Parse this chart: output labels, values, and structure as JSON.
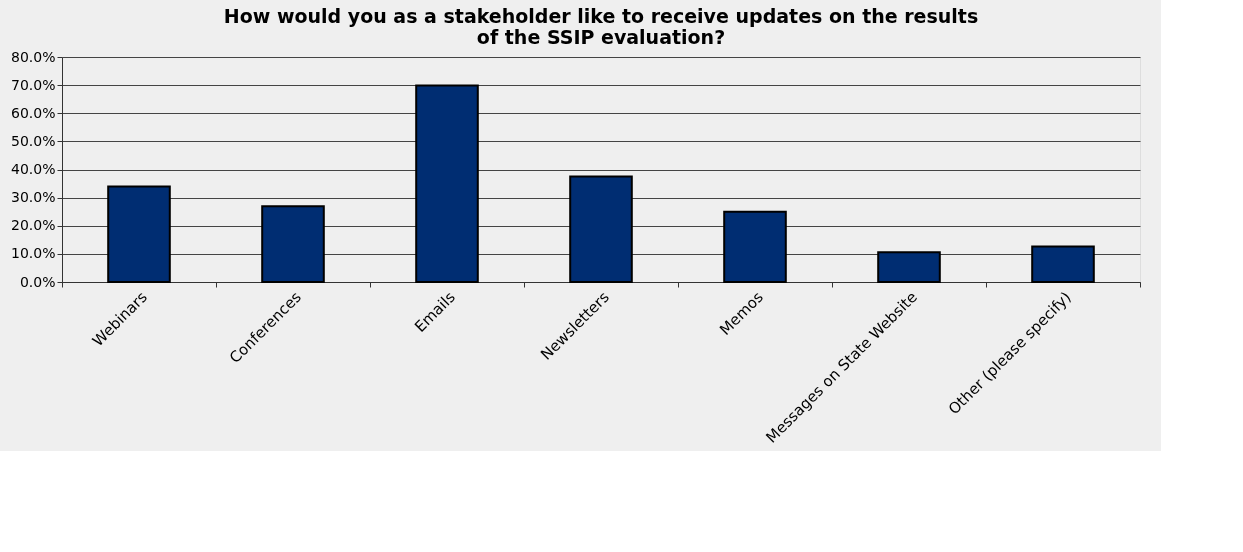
{
  "chart_data": {
    "type": "bar",
    "title": "How would you as a stakeholder like to receive updates on the results of the SSIP evaluation?",
    "categories": [
      "Webinars",
      "Conferences",
      "Emails",
      "Newsletters",
      "Memos",
      "Messages on State Website",
      "Other (please specify)"
    ],
    "values": [
      34.0,
      26.9,
      69.9,
      37.5,
      25.0,
      10.6,
      12.6
    ],
    "color": "#002d72",
    "ylim": [
      0,
      80
    ],
    "yticks": [
      {
        "value": 0,
        "label": "0.0%"
      },
      {
        "value": 10,
        "label": "10.0%"
      },
      {
        "value": 20,
        "label": "20.0%"
      },
      {
        "value": 30,
        "label": "30.0%"
      },
      {
        "value": 40,
        "label": "40.0%"
      },
      {
        "value": 50,
        "label": "50.0%"
      },
      {
        "value": 60,
        "label": "60.0%"
      },
      {
        "value": 70,
        "label": "70.0%"
      },
      {
        "value": 80,
        "label": "80.0%"
      }
    ],
    "grid": "y"
  }
}
